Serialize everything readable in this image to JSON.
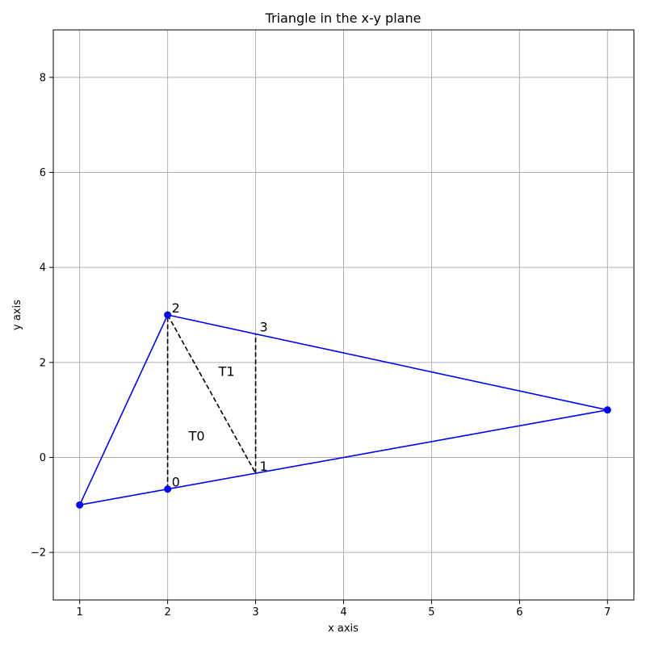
{
  "chart_data": {
    "type": "line",
    "title": "Triangle in the x-y plane",
    "xlabel": "x axis",
    "ylabel": "y axis",
    "xlim": [
      0.7,
      7.3
    ],
    "ylim": [
      -3,
      9
    ],
    "grid": true,
    "x_ticks": [
      1,
      2,
      3,
      4,
      5,
      6,
      7
    ],
    "y_ticks": [
      -2,
      0,
      2,
      4,
      6,
      8
    ],
    "x_tick_labels": [
      "1",
      "2",
      "3",
      "4",
      "5",
      "6",
      "7"
    ],
    "y_tick_labels": [
      "−2",
      "0",
      "2",
      "4",
      "6",
      "8"
    ],
    "triangle": {
      "color": "#0000ff",
      "vertices": [
        [
          1,
          -1
        ],
        [
          2,
          3
        ],
        [
          7,
          1
        ],
        [
          1,
          -1
        ]
      ],
      "markers": [
        [
          1,
          -1
        ],
        [
          2,
          3
        ],
        [
          7,
          1
        ],
        [
          2,
          -0.6667
        ]
      ]
    },
    "dashed_lines": {
      "color": "#000000",
      "segments": [
        [
          [
            2,
            -0.6667
          ],
          [
            2,
            3
          ]
        ],
        [
          [
            2,
            3
          ],
          [
            3,
            -0.3333
          ]
        ],
        [
          [
            3,
            -0.3333
          ],
          [
            3,
            2.6
          ]
        ]
      ]
    },
    "point_labels": [
      {
        "text": "0",
        "x": 2,
        "y": -0.6667
      },
      {
        "text": "1",
        "x": 3,
        "y": -0.3333
      },
      {
        "text": "2",
        "x": 2,
        "y": 3
      },
      {
        "text": "3",
        "x": 3,
        "y": 2.6
      }
    ],
    "region_labels": [
      {
        "text": "T0",
        "x": 2.33,
        "y": 0.44
      },
      {
        "text": "T1",
        "x": 2.67,
        "y": 1.8
      }
    ]
  }
}
